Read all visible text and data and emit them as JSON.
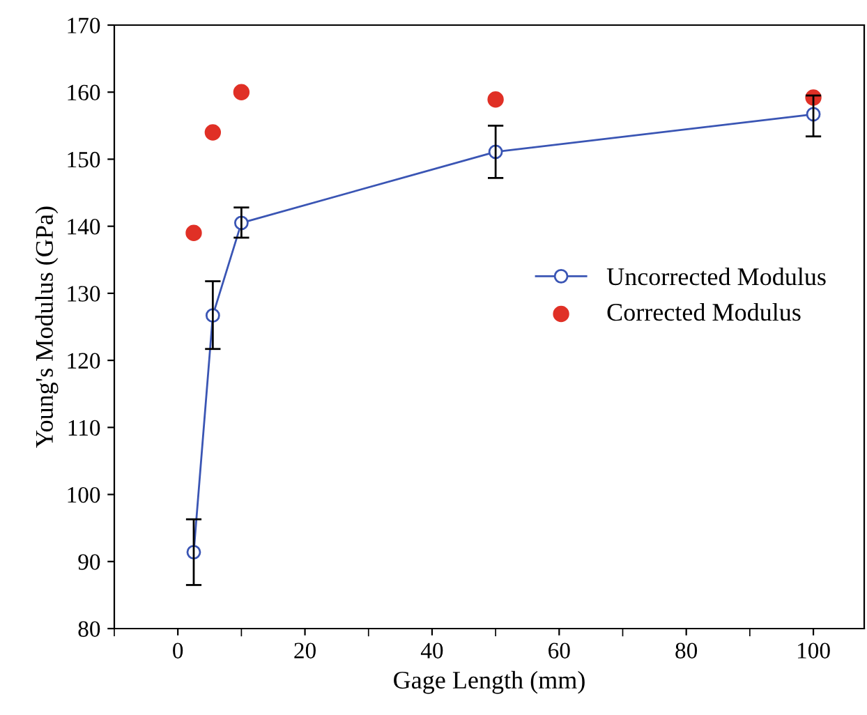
{
  "chart_data": {
    "type": "line",
    "xlabel": "Gage Length (mm)",
    "ylabel": "Young's Modulus (GPa)",
    "xlim": [
      -10,
      108
    ],
    "xticks": [
      0,
      20,
      40,
      60,
      80,
      100
    ],
    "ylim": [
      80,
      170
    ],
    "yticks": [
      80,
      90,
      100,
      110,
      120,
      130,
      140,
      150,
      160,
      170
    ],
    "grid": false,
    "legend": "right",
    "series": [
      {
        "name": "Uncorrected Modulus",
        "color": "#3a55b4",
        "marker": "circle",
        "x": [
          2.5,
          5.5,
          10,
          50,
          100
        ],
        "values": [
          91.4,
          126.7,
          140.5,
          151.1,
          156.7
        ],
        "errors": [
          [
            86.5,
            96.3
          ],
          [
            121.7,
            131.8
          ],
          [
            138.3,
            142.8
          ],
          [
            147.2,
            155.0
          ],
          [
            153.4,
            159.5
          ]
        ]
      },
      {
        "name": "Corrected Modulus",
        "type": "scatter",
        "color": "#e03026",
        "marker": "circle",
        "x": [
          2.5,
          5.5,
          10,
          50,
          100
        ],
        "values": [
          139,
          154,
          160,
          158.9,
          159.2
        ]
      }
    ]
  }
}
